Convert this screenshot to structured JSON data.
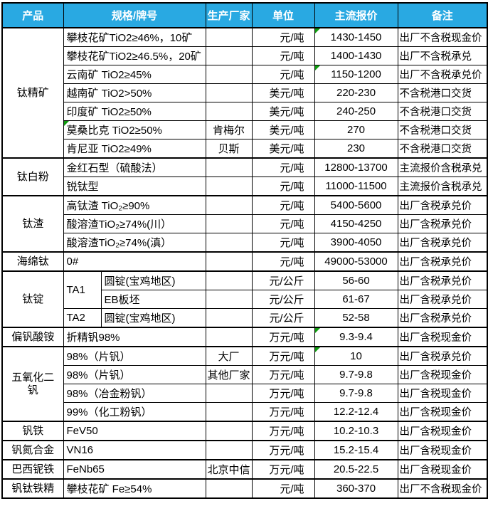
{
  "table": {
    "colors": {
      "header_bg": "#29a9e2",
      "header_text": "#ffffff",
      "border": "#000000",
      "comment_flag_green": "#0e9b0e"
    },
    "columns": [
      {
        "key": "product",
        "label": "产品"
      },
      {
        "key": "spec",
        "label": "规格/牌号"
      },
      {
        "key": "vendor",
        "label": "生产厂家"
      },
      {
        "key": "unit",
        "label": "单位"
      },
      {
        "key": "price",
        "label": "主流报价"
      },
      {
        "key": "note",
        "label": "备注"
      }
    ],
    "rows": [
      {
        "product": "钛精矿",
        "product_span": 7,
        "spec": "攀枝花矿TiO2≥46%，10矿",
        "vendor": "",
        "unit": "元/吨",
        "price": "1430-1450",
        "note": "出厂不含税现金价",
        "price_flag": true
      },
      {
        "spec": "攀枝花矿TiO2≥46.5%，20矿",
        "vendor": "",
        "unit": "元/吨",
        "price": "1400-1430",
        "note": "出厂不含税承兑"
      },
      {
        "spec": "云南矿 TiO2≥45%",
        "vendor": "",
        "unit": "元/吨",
        "price": "1150-1200",
        "note": "出厂不含税承兑价",
        "price_flag": true
      },
      {
        "spec": "越南矿 TiO2>50%",
        "vendor": "",
        "unit": "美元/吨",
        "price": "220-230",
        "note": "不含税港口交货"
      },
      {
        "spec": "印度矿 TiO2≥50%",
        "vendor": "",
        "unit": "美元/吨",
        "price": "240-250",
        "note": "不含税港口交货"
      },
      {
        "spec": "莫桑比克 TiO2≥50%",
        "vendor": "肯梅尔",
        "unit": "美元/吨",
        "price": "270",
        "note": "不含税港口交货",
        "spec_flag": true
      },
      {
        "spec": "肯尼亚 TiO2≥49%",
        "vendor": "贝斯",
        "unit": "美元/吨",
        "price": "230",
        "note": "不含税港口交货"
      },
      {
        "product": "钛白粉",
        "product_span": 2,
        "spec": "金红石型（硫酸法）",
        "vendor": "",
        "unit": "元/吨",
        "price": "12800-13700",
        "note": "主流报价含税承兑"
      },
      {
        "spec": "锐钛型",
        "vendor": "",
        "unit": "元/吨",
        "price": "11000-11500",
        "note": "主流报价含税承兑"
      },
      {
        "product": "钛渣",
        "product_span": 3,
        "spec": "高钛渣 TiO₂≥90%",
        "vendor": "",
        "unit": "元/吨",
        "price": "5400-5600",
        "note": "出厂含税承兑价"
      },
      {
        "spec": "酸溶渣TiO₂≥74%(川）",
        "vendor": "",
        "unit": "元/吨",
        "price": "4150-4250",
        "note": "出厂含税承兑价"
      },
      {
        "spec": "酸溶渣TiO₂≥74%(滇）",
        "vendor": "",
        "unit": "元/吨",
        "price": "3900-4050",
        "note": "出厂含税承兑价"
      },
      {
        "product": "海绵钛",
        "product_span": 1,
        "spec": "0#",
        "vendor": "",
        "unit": "元/吨",
        "price": "49000-53000",
        "note": "出厂含税承兑价"
      },
      {
        "product": "钛锭",
        "product_span": 3,
        "grade": "TA1",
        "grade_span": 2,
        "spec2": "圆锭(宝鸡地区)",
        "vendor": "",
        "unit": "元/公斤",
        "price": "56-60",
        "note": "出厂含税承兑价"
      },
      {
        "spec2": "EB板坯",
        "vendor": "",
        "unit": "元/公斤",
        "price": "61-67",
        "note": "出厂含税承兑价"
      },
      {
        "grade": "TA2",
        "grade_span": 1,
        "spec2": "圆锭(宝鸡地区)",
        "vendor": "",
        "unit": "元/公斤",
        "price": "52-58",
        "note": "出厂含税承兑价"
      },
      {
        "product": "偏钒酸铵",
        "product_span": 1,
        "spec": "折精钒98%",
        "vendor": "",
        "unit": "万元/吨",
        "price": "9.3-9.4",
        "note": "出厂含税现金价",
        "price_flag": true
      },
      {
        "product": "五氧化二钒",
        "product_span": 4,
        "spec": "98%（片钒）",
        "vendor": "大厂",
        "unit": "万元/吨",
        "price": "10",
        "note": "出厂含税承兑价",
        "price_flag": true
      },
      {
        "spec": "98%（片钒）",
        "vendor": "其他厂家",
        "unit": "万元/吨",
        "price": "9.7-9.8",
        "note": "出厂含税现金价"
      },
      {
        "spec": "98%（冶金粉钒）",
        "vendor": "",
        "unit": "万元/吨",
        "price": "9.7-9.8",
        "note": "出厂含税现金价"
      },
      {
        "spec": "99%（化工粉钒）",
        "vendor": "",
        "unit": "万元/吨",
        "price": "12.2-12.4",
        "note": "出厂含税现金价"
      },
      {
        "product": "钒铁",
        "product_span": 1,
        "spec": "FeV50",
        "vendor": "",
        "unit": "万元/吨",
        "price": "10.2-10.3",
        "note": "出厂含税现金价"
      },
      {
        "product": "钒氮合金",
        "product_span": 1,
        "spec": "VN16",
        "vendor": "",
        "unit": "万元/吨",
        "price": "15.2-15.4",
        "note": "出厂含税现金价"
      },
      {
        "product": "巴西铌铁",
        "product_span": 1,
        "spec": "FeNb65",
        "vendor": "北京中信",
        "unit": "万元/吨",
        "price": "20.5-22.5",
        "note": "出厂含税现金价"
      },
      {
        "product": "钒钛铁精",
        "product_span": 1,
        "spec": "攀枝花矿 Fe≥54%",
        "vendor": "",
        "unit": "元/吨",
        "price": "360-370",
        "note": "出厂不含税现金价"
      }
    ]
  }
}
